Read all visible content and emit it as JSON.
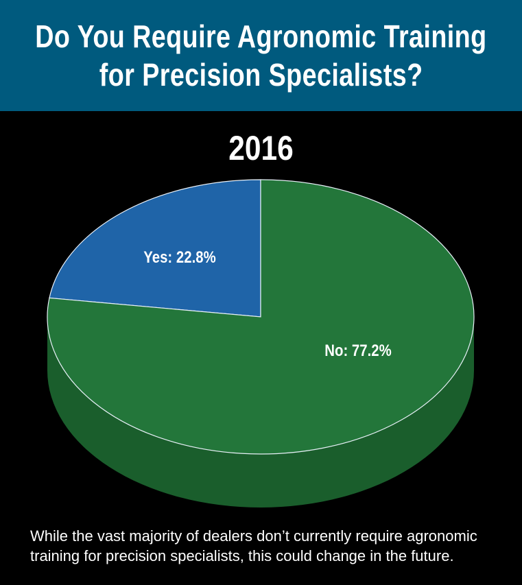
{
  "header": {
    "title_line1": "Do You Require Agronomic Training",
    "title_line2": "for Precision Specialists?"
  },
  "chart_data": {
    "type": "pie",
    "title": "2016",
    "slices": [
      {
        "label": "Yes: 22.8%",
        "name": "Yes",
        "value": 22.8,
        "color": "#1f64a8",
        "side_color": "#174e85"
      },
      {
        "label": "No: 77.2%",
        "name": "No",
        "value": 77.2,
        "color": "#23763a",
        "side_color": "#1a5e2c"
      }
    ]
  },
  "caption": "While the vast majority of dealers don’t currently require agronomic training for precision specialists, this could change in the future."
}
